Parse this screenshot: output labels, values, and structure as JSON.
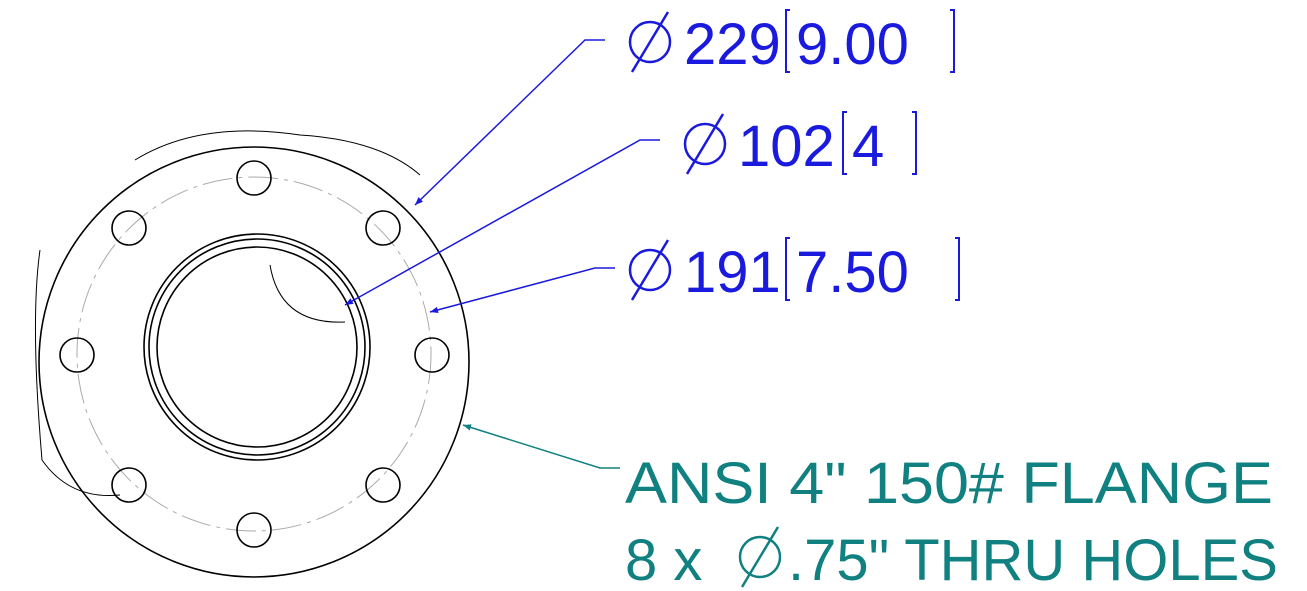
{
  "dimensions": [
    {
      "value": "229",
      "alt": "9.00"
    },
    {
      "value": "102",
      "alt": "4"
    },
    {
      "value": "191",
      "alt": "7.50"
    }
  ],
  "note": {
    "line1": "ANSI 4\" 150# FLANGE",
    "line2_prefix": "8 x",
    "line2_suffix": ".75\" THRU HOLES"
  }
}
